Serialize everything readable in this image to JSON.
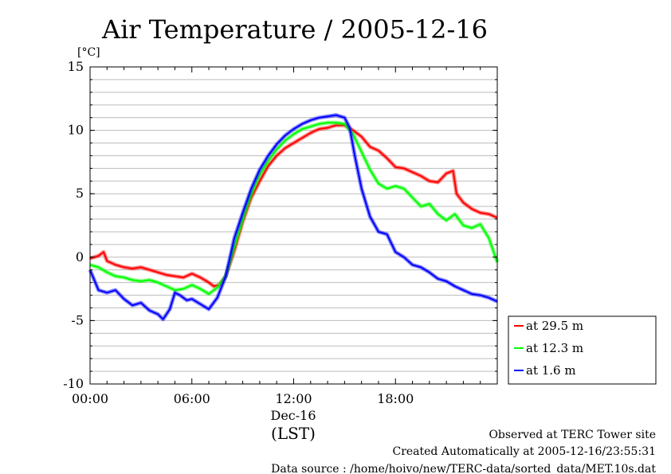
{
  "chart_data": {
    "type": "line",
    "title": "Air Temperature / 2005-12-16",
    "y_unit": "[°C]",
    "ylim": [
      -10,
      15
    ],
    "y_ticks": [
      15,
      10,
      5,
      0,
      -5,
      -10
    ],
    "xlim": [
      0,
      24
    ],
    "x_ticks": [
      {
        "hour": 0,
        "label": "00:00"
      },
      {
        "hour": 6,
        "label": "06:00"
      },
      {
        "hour": 12,
        "label": "12:00"
      },
      {
        "hour": 18,
        "label": "18:00"
      }
    ],
    "x_date_label": "Dec-16",
    "x_axis_label": "(LST)",
    "grid": true,
    "legend_position": "right",
    "series": [
      {
        "name": "at 29.5 m",
        "color": "#ff0000",
        "points": [
          [
            0,
            -0.1
          ],
          [
            0.5,
            0.1
          ],
          [
            0.8,
            0.4
          ],
          [
            1,
            -0.3
          ],
          [
            1.5,
            -0.6
          ],
          [
            2,
            -0.8
          ],
          [
            2.5,
            -0.9
          ],
          [
            3,
            -0.8
          ],
          [
            3.5,
            -1.0
          ],
          [
            4,
            -1.2
          ],
          [
            4.5,
            -1.4
          ],
          [
            5,
            -1.5
          ],
          [
            5.5,
            -1.6
          ],
          [
            6,
            -1.3
          ],
          [
            6.5,
            -1.6
          ],
          [
            7,
            -2.0
          ],
          [
            7.3,
            -2.3
          ],
          [
            7.6,
            -2.2
          ],
          [
            8,
            -1.5
          ],
          [
            8.5,
            0.5
          ],
          [
            9,
            2.8
          ],
          [
            9.5,
            4.7
          ],
          [
            10,
            6.0
          ],
          [
            10.5,
            7.2
          ],
          [
            11,
            8.0
          ],
          [
            11.5,
            8.6
          ],
          [
            12,
            9.0
          ],
          [
            12.5,
            9.4
          ],
          [
            13,
            9.8
          ],
          [
            13.5,
            10.1
          ],
          [
            14,
            10.2
          ],
          [
            14.5,
            10.4
          ],
          [
            15,
            10.4
          ],
          [
            15.5,
            10.0
          ],
          [
            16,
            9.5
          ],
          [
            16.5,
            8.7
          ],
          [
            17,
            8.4
          ],
          [
            17.5,
            7.8
          ],
          [
            18,
            7.1
          ],
          [
            18.5,
            7.0
          ],
          [
            19,
            6.7
          ],
          [
            19.5,
            6.4
          ],
          [
            20,
            6.0
          ],
          [
            20.5,
            5.9
          ],
          [
            21,
            6.6
          ],
          [
            21.4,
            6.8
          ],
          [
            21.6,
            5.0
          ],
          [
            22,
            4.3
          ],
          [
            22.5,
            3.8
          ],
          [
            23,
            3.5
          ],
          [
            23.5,
            3.4
          ],
          [
            24,
            3.1
          ]
        ]
      },
      {
        "name": "at 12.3 m",
        "color": "#00ff00",
        "points": [
          [
            0,
            -0.6
          ],
          [
            0.5,
            -0.8
          ],
          [
            1,
            -1.2
          ],
          [
            1.5,
            -1.5
          ],
          [
            2,
            -1.6
          ],
          [
            2.5,
            -1.8
          ],
          [
            3,
            -1.9
          ],
          [
            3.5,
            -1.8
          ],
          [
            4,
            -2.0
          ],
          [
            4.5,
            -2.3
          ],
          [
            5,
            -2.6
          ],
          [
            5.5,
            -2.5
          ],
          [
            6,
            -2.2
          ],
          [
            6.5,
            -2.5
          ],
          [
            7,
            -2.9
          ],
          [
            7.5,
            -2.4
          ],
          [
            8,
            -1.5
          ],
          [
            8.5,
            0.8
          ],
          [
            9,
            3.0
          ],
          [
            9.5,
            5.0
          ],
          [
            10,
            6.5
          ],
          [
            10.5,
            7.6
          ],
          [
            11,
            8.5
          ],
          [
            11.5,
            9.2
          ],
          [
            12,
            9.7
          ],
          [
            12.5,
            10.1
          ],
          [
            13,
            10.3
          ],
          [
            13.5,
            10.5
          ],
          [
            14,
            10.6
          ],
          [
            14.5,
            10.6
          ],
          [
            15,
            10.5
          ],
          [
            15.5,
            9.7
          ],
          [
            16,
            8.3
          ],
          [
            16.5,
            6.9
          ],
          [
            17,
            5.8
          ],
          [
            17.5,
            5.4
          ],
          [
            18,
            5.6
          ],
          [
            18.5,
            5.4
          ],
          [
            19,
            4.7
          ],
          [
            19.5,
            4.0
          ],
          [
            20,
            4.2
          ],
          [
            20.5,
            3.4
          ],
          [
            21,
            2.9
          ],
          [
            21.5,
            3.4
          ],
          [
            22,
            2.5
          ],
          [
            22.5,
            2.3
          ],
          [
            23,
            2.6
          ],
          [
            23.5,
            1.5
          ],
          [
            24,
            -0.4
          ]
        ]
      },
      {
        "name": "at 1.6 m",
        "color": "#0000ff",
        "points": [
          [
            0,
            -1.0
          ],
          [
            0.5,
            -2.6
          ],
          [
            1,
            -2.8
          ],
          [
            1.5,
            -2.6
          ],
          [
            2,
            -3.3
          ],
          [
            2.5,
            -3.8
          ],
          [
            3,
            -3.6
          ],
          [
            3.5,
            -4.2
          ],
          [
            4,
            -4.5
          ],
          [
            4.3,
            -4.9
          ],
          [
            4.7,
            -4.1
          ],
          [
            5,
            -2.8
          ],
          [
            5.3,
            -3.0
          ],
          [
            5.7,
            -3.4
          ],
          [
            6,
            -3.3
          ],
          [
            6.5,
            -3.7
          ],
          [
            7,
            -4.1
          ],
          [
            7.5,
            -3.2
          ],
          [
            8,
            -1.5
          ],
          [
            8.5,
            1.5
          ],
          [
            9,
            3.5
          ],
          [
            9.5,
            5.4
          ],
          [
            10,
            6.9
          ],
          [
            10.5,
            8.0
          ],
          [
            11,
            8.9
          ],
          [
            11.5,
            9.6
          ],
          [
            12,
            10.1
          ],
          [
            12.5,
            10.5
          ],
          [
            13,
            10.8
          ],
          [
            13.5,
            11.0
          ],
          [
            14,
            11.1
          ],
          [
            14.5,
            11.2
          ],
          [
            15,
            11.0
          ],
          [
            15.3,
            10.2
          ],
          [
            15.6,
            8.0
          ],
          [
            16,
            5.4
          ],
          [
            16.5,
            3.2
          ],
          [
            17,
            2.0
          ],
          [
            17.5,
            1.8
          ],
          [
            18,
            0.4
          ],
          [
            18.5,
            0.0
          ],
          [
            19,
            -0.6
          ],
          [
            19.5,
            -0.8
          ],
          [
            20,
            -1.2
          ],
          [
            20.5,
            -1.7
          ],
          [
            21,
            -1.9
          ],
          [
            21.5,
            -2.3
          ],
          [
            22,
            -2.6
          ],
          [
            22.5,
            -2.9
          ],
          [
            23,
            -3.0
          ],
          [
            23.5,
            -3.2
          ],
          [
            24,
            -3.5
          ]
        ]
      }
    ]
  },
  "footer": {
    "line1": "Observed at TERC Tower site",
    "line2": "Created Automatically at 2005-12-16/23:55:31",
    "line3": "Data source : /home/hoivo/new/TERC-data/sorted_data/MET.10s.dat"
  }
}
